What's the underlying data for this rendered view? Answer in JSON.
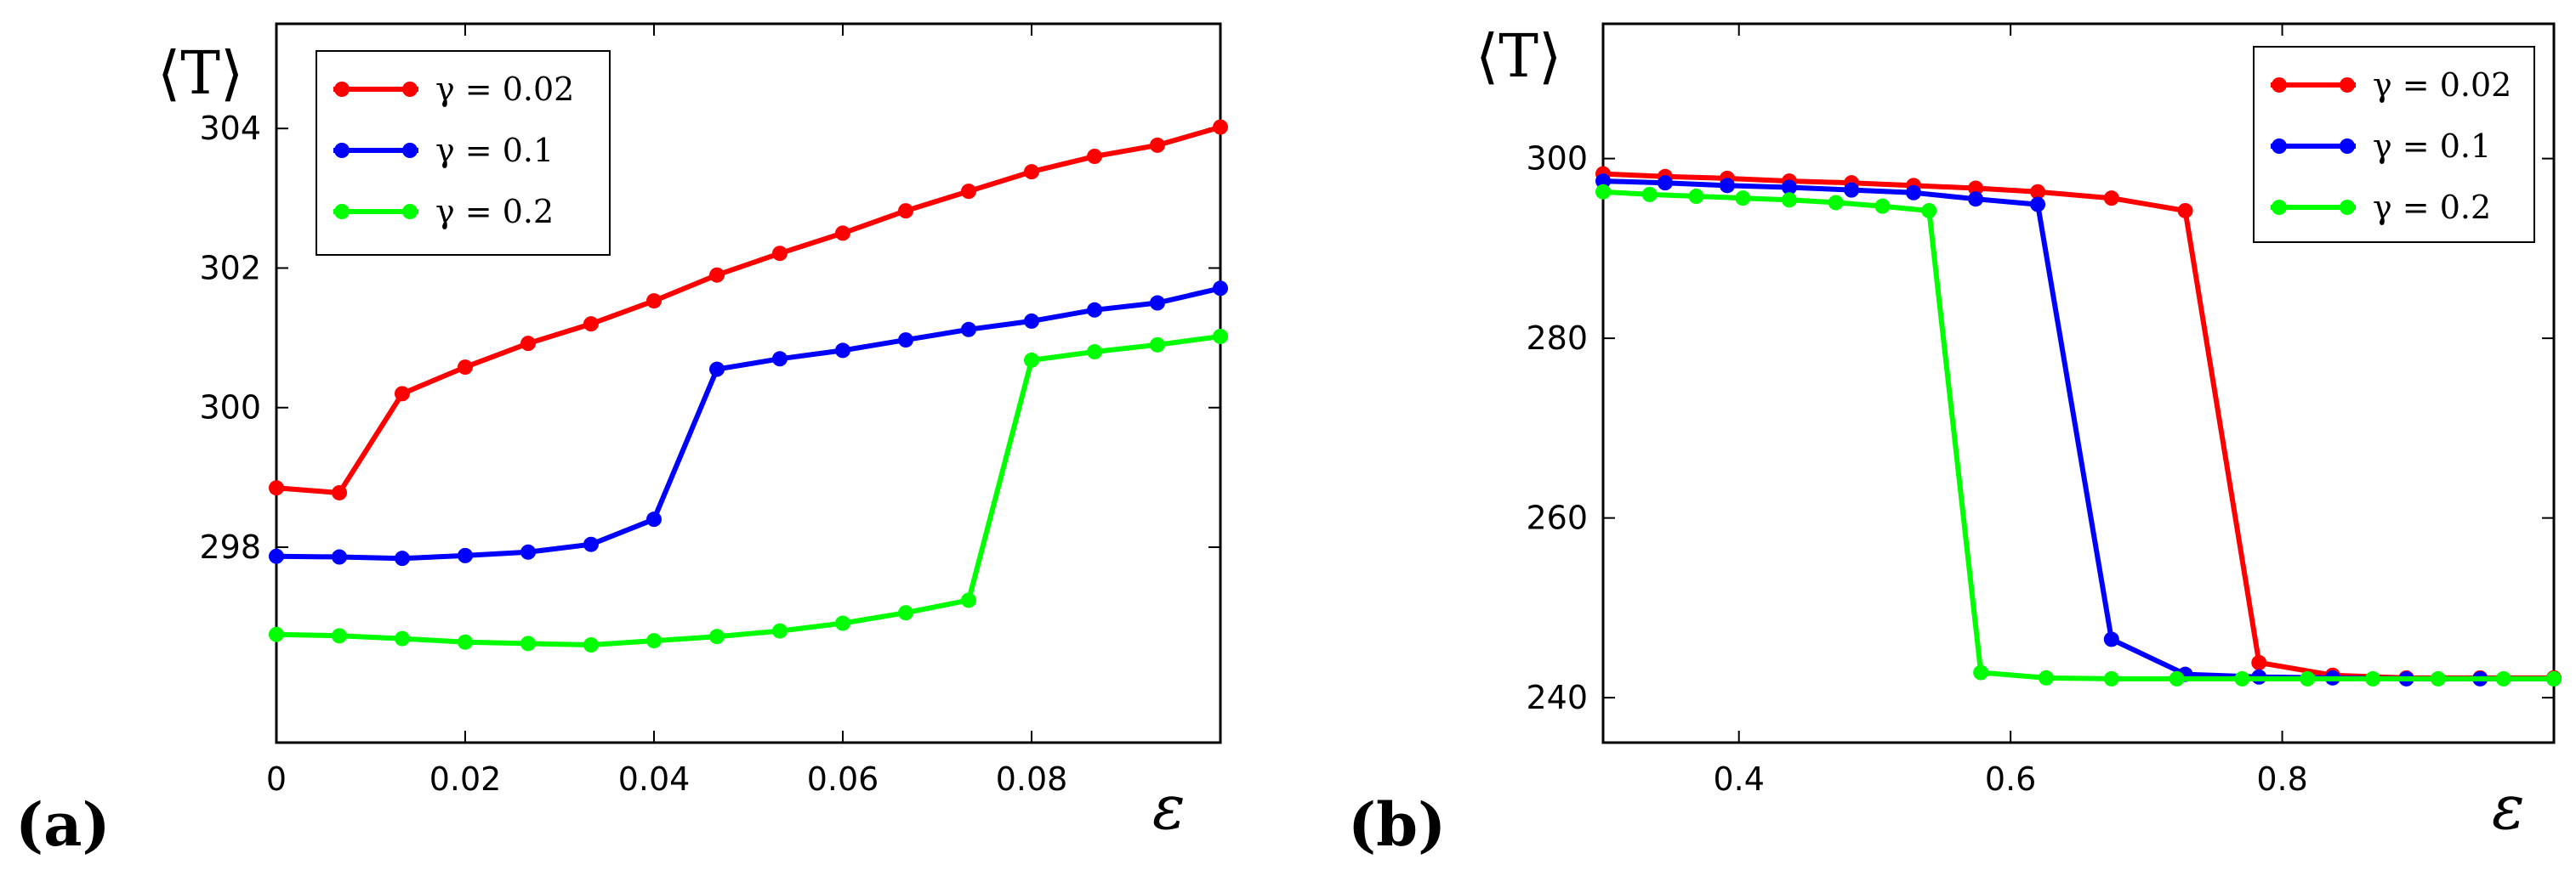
{
  "chart_data": [
    {
      "type": "line",
      "panel_label": "(a)",
      "ylabel": "⟨T⟩",
      "xlabel": "ε",
      "xlim": [
        0,
        0.1
      ],
      "ylim": [
        295.2,
        305.5
      ],
      "xticks": [
        0,
        0.02,
        0.04,
        0.06,
        0.08
      ],
      "xtick_labels": [
        "0",
        "0.02",
        "0.04",
        "0.06",
        "0.08"
      ],
      "yticks": [
        298,
        300,
        302,
        304
      ],
      "ytick_labels": [
        "298",
        "300",
        "302",
        "304"
      ],
      "legend_position": "top-left",
      "x": [
        0,
        0.00667,
        0.01333,
        0.02,
        0.02667,
        0.03333,
        0.04,
        0.04667,
        0.05333,
        0.06,
        0.06667,
        0.07333,
        0.08,
        0.08667,
        0.09333,
        0.1
      ],
      "series": [
        {
          "name": "γ = 0.02",
          "color": "#ff0000",
          "values": [
            298.85,
            298.78,
            300.2,
            300.58,
            300.92,
            301.2,
            301.53,
            301.9,
            302.21,
            302.5,
            302.82,
            303.1,
            303.38,
            303.6,
            303.76,
            304.02
          ]
        },
        {
          "name": "γ = 0.1",
          "color": "#0000ff",
          "values": [
            297.87,
            297.86,
            297.84,
            297.88,
            297.93,
            298.04,
            298.4,
            300.55,
            300.7,
            300.82,
            300.97,
            301.12,
            301.24,
            301.4,
            301.5,
            301.71
          ]
        },
        {
          "name": "γ = 0.2",
          "color": "#00ff00",
          "values": [
            296.75,
            296.73,
            296.69,
            296.64,
            296.62,
            296.6,
            296.66,
            296.72,
            296.8,
            296.91,
            297.06,
            297.24,
            300.68,
            300.8,
            300.9,
            301.02
          ]
        }
      ]
    },
    {
      "type": "line",
      "panel_label": "(b)",
      "ylabel": "⟨T⟩",
      "xlabel": "ε",
      "xlim": [
        0.3,
        1.0
      ],
      "ylim": [
        235,
        315
      ],
      "xticks": [
        0.4,
        0.6,
        0.8
      ],
      "xtick_labels": [
        "0.4",
        "0.6",
        "0.8"
      ],
      "yticks": [
        240,
        260,
        280,
        300
      ],
      "ytick_labels": [
        "240",
        "260",
        "280",
        "300"
      ],
      "legend_position": "top-right",
      "x": [
        0.3,
        0.3444,
        0.3889,
        0.4333,
        0.4778,
        0.5222,
        0.5667,
        0.6111,
        0.6556,
        0.7,
        0.7444,
        0.7889,
        0.8333,
        0.8778,
        0.9222,
        0.9667,
        1.0
      ],
      "series": [
        {
          "name": "γ = 0.02",
          "color": "#ff0000",
          "x": [
            0.3,
            0.3457,
            0.3914,
            0.4371,
            0.4829,
            0.5286,
            0.5743,
            0.62,
            0.6743,
            0.7286,
            0.7829,
            0.8371,
            0.8914,
            0.9457,
            1.0
          ],
          "values": [
            298.3,
            298.0,
            297.8,
            297.5,
            297.3,
            297.0,
            296.7,
            296.3,
            295.6,
            294.2,
            243.9,
            242.5,
            242.2,
            242.2,
            242.2
          ]
        },
        {
          "name": "γ = 0.1",
          "color": "#0000ff",
          "x": [
            0.3,
            0.3457,
            0.3914,
            0.4371,
            0.4829,
            0.5286,
            0.5743,
            0.62,
            0.6743,
            0.7286,
            0.7829,
            0.8371,
            0.8914,
            0.9457,
            1.0
          ],
          "values": [
            297.5,
            297.3,
            297.0,
            296.8,
            296.5,
            296.2,
            295.5,
            294.9,
            246.5,
            242.6,
            242.3,
            242.2,
            242.1,
            242.1,
            242.1
          ]
        },
        {
          "name": "γ = 0.2",
          "color": "#00ff00",
          "x": [
            0.3,
            0.3343,
            0.3686,
            0.4029,
            0.4371,
            0.4714,
            0.5057,
            0.54,
            0.5781,
            0.6262,
            0.6743,
            0.7224,
            0.7705,
            0.8186,
            0.8667,
            0.9148,
            0.9629,
            1.0
          ],
          "values": [
            296.3,
            296.0,
            295.8,
            295.6,
            295.4,
            295.1,
            294.7,
            294.2,
            242.8,
            242.2,
            242.1,
            242.1,
            242.1,
            242.1,
            242.1,
            242.1,
            242.1,
            242.1
          ]
        }
      ]
    }
  ]
}
